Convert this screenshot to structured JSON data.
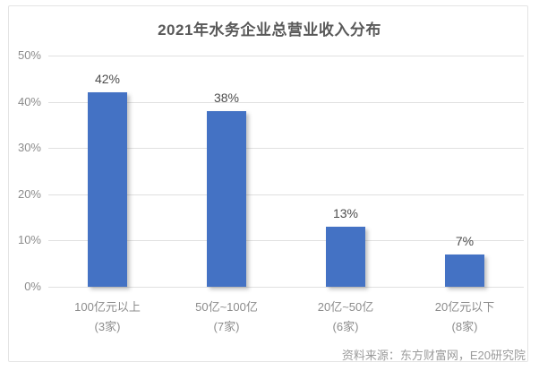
{
  "chart_data": {
    "type": "bar",
    "title": "2021年水务企业总营业收入分布",
    "categories": [
      "100亿元以上",
      "50亿~100亿",
      "20亿~50亿",
      "20亿元以下"
    ],
    "category_counts": [
      "(3家)",
      "(7家)",
      "(6家)",
      "(8家)"
    ],
    "values": [
      42,
      38,
      13,
      7
    ],
    "value_labels": [
      "42%",
      "38%",
      "13%",
      "7%"
    ],
    "xlabel": "",
    "ylabel": "",
    "ylim": [
      0,
      50
    ],
    "yticks": [
      0,
      10,
      20,
      30,
      40,
      50
    ],
    "ytick_labels": [
      "0%",
      "10%",
      "20%",
      "30%",
      "40%",
      "50%"
    ],
    "grid": true,
    "legend": false,
    "bar_color": "#4472C4",
    "source": "资料来源：东方财富网，E20研究院"
  }
}
